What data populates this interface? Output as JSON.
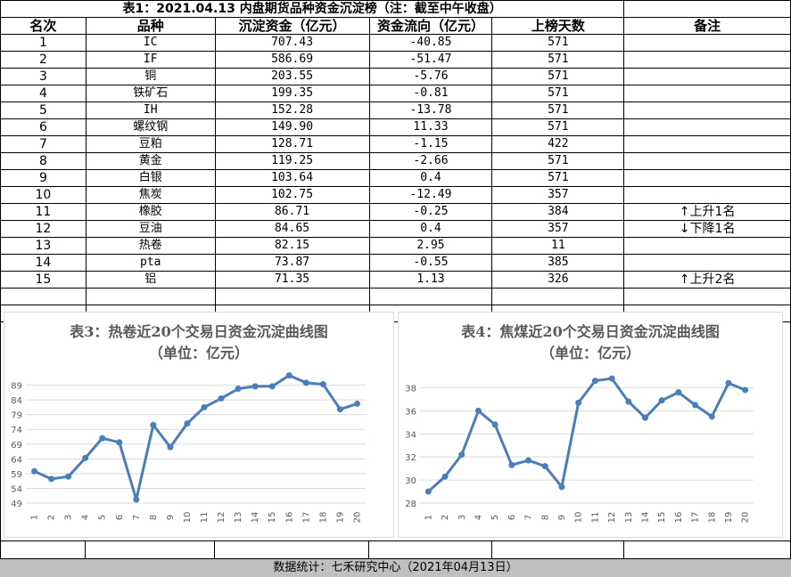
{
  "table": {
    "title": "表1：2021.04.13 内盘期货品种资金沉淀榜（注：截至中午收盘）",
    "headers": [
      "名次",
      "品种",
      "沉淀资金（亿元）",
      "资金流向（亿元）",
      "上榜天数",
      "备注"
    ],
    "rows": [
      {
        "rank": "1",
        "name": "IC",
        "funds": "707.43",
        "flow": "-40.85",
        "days": "571",
        "note": ""
      },
      {
        "rank": "2",
        "name": "IF",
        "funds": "586.69",
        "flow": "-51.47",
        "days": "571",
        "note": ""
      },
      {
        "rank": "3",
        "name": "铜",
        "funds": "203.55",
        "flow": "-5.76",
        "days": "571",
        "note": ""
      },
      {
        "rank": "4",
        "name": "铁矿石",
        "funds": "199.35",
        "flow": "-0.81",
        "days": "571",
        "note": ""
      },
      {
        "rank": "5",
        "name": "IH",
        "funds": "152.28",
        "flow": "-13.78",
        "days": "571",
        "note": ""
      },
      {
        "rank": "6",
        "name": "螺纹钢",
        "funds": "149.90",
        "flow": "11.33",
        "days": "571",
        "note": ""
      },
      {
        "rank": "7",
        "name": "豆粕",
        "funds": "128.71",
        "flow": "-1.15",
        "days": "422",
        "note": ""
      },
      {
        "rank": "8",
        "name": "黄金",
        "funds": "119.25",
        "flow": "-2.66",
        "days": "571",
        "note": ""
      },
      {
        "rank": "9",
        "name": "白银",
        "funds": "103.64",
        "flow": "0.4",
        "days": "571",
        "note": ""
      },
      {
        "rank": "10",
        "name": "焦炭",
        "funds": "102.75",
        "flow": "-12.49",
        "days": "357",
        "note": ""
      },
      {
        "rank": "11",
        "name": "橡胶",
        "funds": "86.71",
        "flow": "-0.25",
        "days": "384",
        "note": "上升1名",
        "arrow": "↑"
      },
      {
        "rank": "12",
        "name": "豆油",
        "funds": "84.65",
        "flow": "0.4",
        "days": "357",
        "note": "下降1名",
        "arrow": "↓"
      },
      {
        "rank": "13",
        "name": "热卷",
        "funds": "82.15",
        "flow": "2.95",
        "days": "11",
        "note": ""
      },
      {
        "rank": "14",
        "name": "pta",
        "funds": "73.87",
        "flow": "-0.55",
        "days": "385",
        "note": ""
      },
      {
        "rank": "15",
        "name": "铝",
        "funds": "71.35",
        "flow": "1.13",
        "days": "326",
        "note": "上升2名",
        "arrow": "↑"
      }
    ]
  },
  "chart_data": [
    {
      "type": "line",
      "title": "表3：热卷近20个交易日资金沉淀曲线图",
      "subtitle": "（单位：亿元）",
      "x": [
        "1",
        "2",
        "3",
        "4",
        "5",
        "6",
        "7",
        "8",
        "9",
        "10",
        "11",
        "12",
        "13",
        "14",
        "15",
        "16",
        "17",
        "18",
        "19",
        "20"
      ],
      "series": [
        {
          "values": [
            59.8,
            57.2,
            58.0,
            64.3,
            71.0,
            69.6,
            50.2,
            75.5,
            68.0,
            76.0,
            81.5,
            84.5,
            87.8,
            88.6,
            88.6,
            92.3,
            89.8,
            89.3,
            80.8,
            82.7
          ]
        }
      ],
      "yticks": [
        49,
        54,
        59,
        64,
        69,
        74,
        79,
        84,
        89
      ],
      "ylim": [
        49,
        94
      ],
      "grid": true,
      "color": "#4a7ebb"
    },
    {
      "type": "line",
      "title": "表4：焦煤近20个交易日资金沉淀曲线图",
      "subtitle": "（单位：亿元）",
      "x": [
        "1",
        "2",
        "3",
        "4",
        "5",
        "6",
        "7",
        "8",
        "9",
        "10",
        "11",
        "12",
        "13",
        "14",
        "15",
        "16",
        "17",
        "18",
        "19",
        "20"
      ],
      "series": [
        {
          "values": [
            29.0,
            30.3,
            32.2,
            36.0,
            34.8,
            31.3,
            31.7,
            31.2,
            29.4,
            36.7,
            38.6,
            38.8,
            36.8,
            35.4,
            36.9,
            37.6,
            36.5,
            35.5,
            38.4,
            37.8
          ]
        }
      ],
      "yticks": [
        28,
        30,
        32,
        34,
        36,
        38
      ],
      "ylim": [
        28,
        39.5
      ],
      "grid": true,
      "color": "#4a7ebb"
    }
  ],
  "footer": "数据统计：七禾研究中心（2021年04月13日）"
}
